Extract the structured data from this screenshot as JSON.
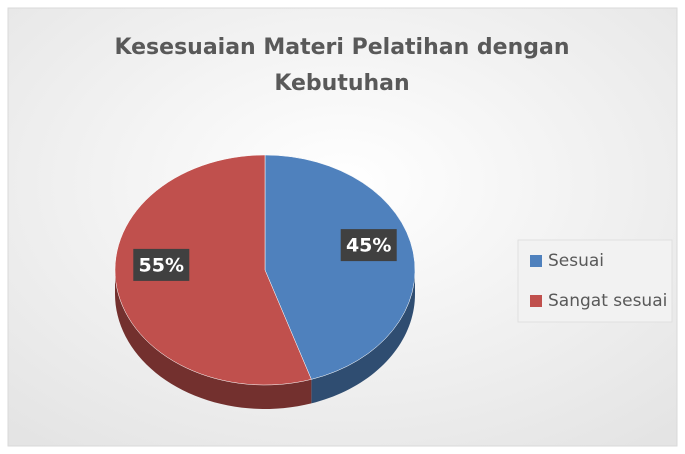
{
  "chart_data": {
    "type": "pie",
    "title": "Kesesuaian Materi Pelatihan dengan Kebutuhan",
    "categories": [
      "Sesuai",
      "Sangat sesuai"
    ],
    "values": [
      45,
      55
    ],
    "value_labels": [
      "45%",
      "55%"
    ],
    "colors": [
      "#4f81bd",
      "#c0504d"
    ],
    "legend": "right"
  }
}
